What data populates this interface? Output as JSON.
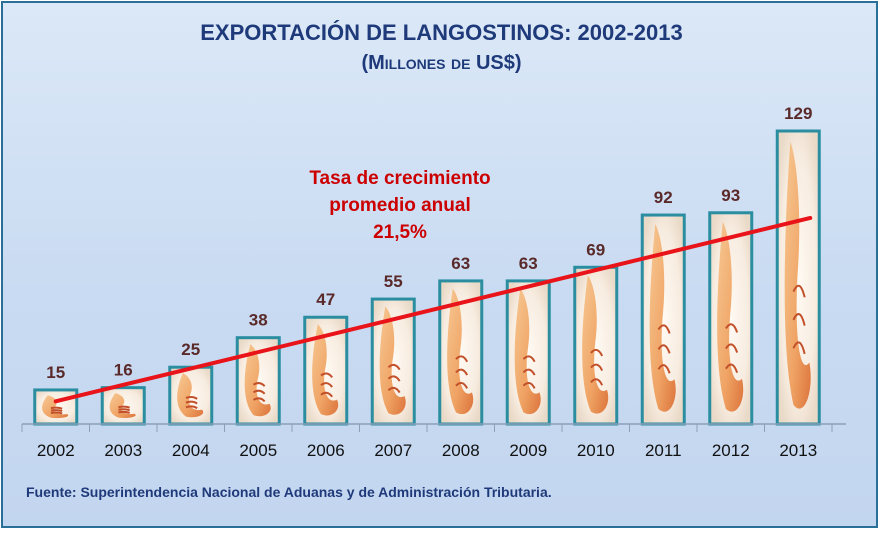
{
  "colors": {
    "title": "#1f3a7a",
    "trend_line": "#e8141a",
    "bar_border": "#2a8ea0",
    "value_label": "#5a2a2a",
    "annotation": "#cc0000"
  },
  "icons": {
    "bar_fill": "shrimp-icon"
  },
  "chart_data": {
    "type": "bar",
    "title": "EXPORTACIÓN DE LANGOSTINOS: 2002-2013",
    "subtitle": "(Millones de US$)",
    "categories": [
      "2002",
      "2003",
      "2004",
      "2005",
      "2006",
      "2007",
      "2008",
      "2009",
      "2010",
      "2011",
      "2012",
      "2013"
    ],
    "values": [
      15,
      16,
      25,
      38,
      47,
      55,
      63,
      63,
      69,
      92,
      93,
      129
    ],
    "ylim": [
      0,
      129
    ],
    "grid": false,
    "legend": "none",
    "annotation": {
      "lines": [
        "Tasa de crecimiento",
        "promedio anual",
        "21,5%"
      ]
    },
    "trend": {
      "start": 10,
      "end": 90.7
    }
  },
  "source": "Fuente: Superintendencia Nacional de Aduanas y de Administración Tributaria."
}
